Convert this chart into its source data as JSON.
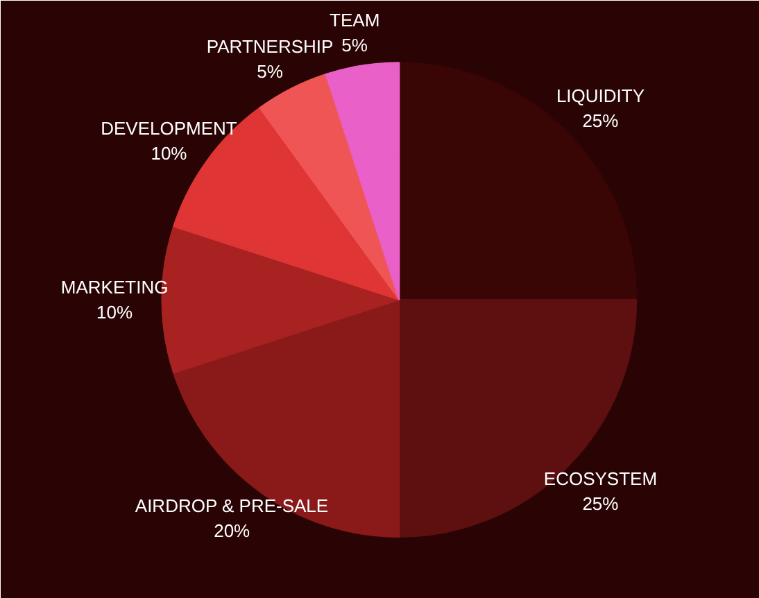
{
  "chart_data": {
    "type": "pie",
    "categories": [
      "LIQUIDITY",
      "ECOSYSTEM",
      "AIRDROP & PRE-SALE",
      "MARKETING",
      "DEVELOPMENT",
      "PARTNERSHIP",
      "TEAM"
    ],
    "values": [
      25,
      25,
      20,
      10,
      10,
      5,
      5
    ],
    "colors": [
      "#3a0505",
      "#5e0f0f",
      "#8a1a1a",
      "#a82222",
      "#e03535",
      "#f05555",
      "#e860c8"
    ],
    "value_labels": [
      "25%",
      "25%",
      "20%",
      "10%",
      "10%",
      "5%",
      "5%"
    ],
    "legend": false
  }
}
